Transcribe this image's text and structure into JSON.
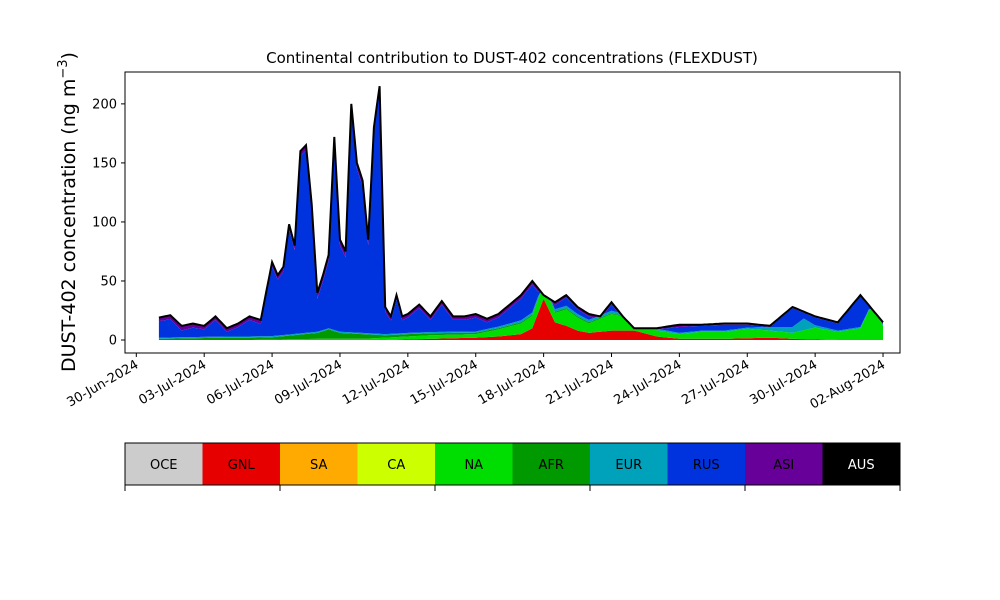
{
  "chart_data": {
    "type": "area",
    "title": "Continental contribution to DUST-402 concentrations (FLEXDUST)",
    "ylabel": "DUST-402 concentration (ng m⁻³)",
    "ylabel_main": "DUST-402 concentration (ng m",
    "ylabel_sup": "−3",
    "ylabel_close": ")",
    "xlabel": "",
    "ylim": [
      -11,
      227
    ],
    "xlim": [
      "2024-06-29T12:00",
      "2024-08-02T18:00"
    ],
    "yticks": [
      0,
      50,
      100,
      150,
      200
    ],
    "xticks": [
      "30-Jun-2024",
      "03-Jul-2024",
      "06-Jul-2024",
      "09-Jul-2024",
      "12-Jul-2024",
      "15-Jul-2024",
      "18-Jul-2024",
      "21-Jul-2024",
      "24-Jul-2024",
      "27-Jul-2024",
      "30-Jul-2024",
      "02-Aug-2024"
    ],
    "x_tick_dates": [
      "2024-06-30",
      "2024-07-03",
      "2024-07-06",
      "2024-07-09",
      "2024-07-12",
      "2024-07-15",
      "2024-07-18",
      "2024-07-21",
      "2024-07-24",
      "2024-07-27",
      "2024-07-30",
      "2024-08-02"
    ],
    "grid": false,
    "stack_order": [
      "GNL",
      "NA",
      "AFR",
      "EUR",
      "RUS",
      "ASI",
      "AUS"
    ],
    "legend": [
      {
        "name": "OCE",
        "color": "#cccccc",
        "text_color": "#000000"
      },
      {
        "name": "GNL",
        "color": "#e60000",
        "text_color": "#000000"
      },
      {
        "name": "SA",
        "color": "#ffaa00",
        "text_color": "#000000"
      },
      {
        "name": "CA",
        "color": "#ccff00",
        "text_color": "#000000"
      },
      {
        "name": "NA",
        "color": "#00dd00",
        "text_color": "#000000"
      },
      {
        "name": "AFR",
        "color": "#009900",
        "text_color": "#000000"
      },
      {
        "name": "EUR",
        "color": "#00a2bb",
        "text_color": "#000000"
      },
      {
        "name": "RUS",
        "color": "#0033dd",
        "text_color": "#000000"
      },
      {
        "name": "ASI",
        "color": "#660099",
        "text_color": "#000000"
      },
      {
        "name": "AUS",
        "color": "#000000",
        "text_color": "#ffffff"
      }
    ],
    "series": [
      {
        "name": "GNL",
        "x": [
          "2024-07-01",
          "2024-07-05",
          "2024-07-11",
          "2024-07-13",
          "2024-07-15",
          "2024-07-16",
          "2024-07-17",
          "2024-07-17T12:00",
          "2024-07-18",
          "2024-07-18T12:00",
          "2024-07-19",
          "2024-07-19T12:00",
          "2024-07-20",
          "2024-07-21",
          "2024-07-22",
          "2024-07-23",
          "2024-07-24",
          "2024-07-26",
          "2024-07-28",
          "2024-07-29",
          "2024-07-31",
          "2024-08-01",
          "2024-08-02"
        ],
        "values": [
          0,
          0,
          0,
          1,
          2,
          3,
          5,
          10,
          35,
          15,
          12,
          8,
          6,
          8,
          8,
          3,
          1,
          1,
          2,
          1,
          0,
          0,
          0
        ]
      },
      {
        "name": "NA",
        "x": [
          "2024-07-01",
          "2024-07-05",
          "2024-07-08",
          "2024-07-10",
          "2024-07-11",
          "2024-07-13",
          "2024-07-15",
          "2024-07-16",
          "2024-07-17",
          "2024-07-18",
          "2024-07-18T12:00",
          "2024-07-19",
          "2024-07-20",
          "2024-07-21",
          "2024-07-22",
          "2024-07-23",
          "2024-07-24",
          "2024-07-25",
          "2024-07-26",
          "2024-07-27",
          "2024-07-28",
          "2024-07-29",
          "2024-07-30",
          "2024-07-31",
          "2024-08-01",
          "2024-08-01T12:00",
          "2024-08-02"
        ],
        "values": [
          0,
          0,
          1,
          1,
          2,
          3,
          3,
          6,
          9,
          12,
          8,
          14,
          8,
          14,
          10,
          5,
          4,
          6,
          6,
          8,
          6,
          5,
          10,
          7,
          10,
          30,
          12
        ]
      },
      {
        "name": "AFR",
        "x": [
          "2024-07-01",
          "2024-07-04",
          "2024-07-06",
          "2024-07-08",
          "2024-07-08T12:00",
          "2024-07-09",
          "2024-07-10",
          "2024-07-11",
          "2024-07-12",
          "2024-07-16",
          "2024-07-20",
          "2024-07-24",
          "2024-07-28",
          "2024-08-02"
        ],
        "values": [
          1,
          2,
          2,
          5,
          8,
          5,
          4,
          2,
          2,
          1,
          1,
          0,
          0,
          0
        ]
      },
      {
        "name": "EUR",
        "x": [
          "2024-07-01",
          "2024-07-05",
          "2024-07-10",
          "2024-07-13",
          "2024-07-15",
          "2024-07-18",
          "2024-07-21",
          "2024-07-24",
          "2024-07-27",
          "2024-07-29",
          "2024-07-29T12:00",
          "2024-07-30",
          "2024-07-31",
          "2024-08-02"
        ],
        "values": [
          1,
          1,
          1,
          1,
          1,
          2,
          2,
          1,
          1,
          5,
          10,
          2,
          1,
          1
        ]
      },
      {
        "name": "RUS",
        "x": [
          "2024-07-01",
          "2024-07-01T12:00",
          "2024-07-02",
          "2024-07-02T12:00",
          "2024-07-03",
          "2024-07-03T12:00",
          "2024-07-04",
          "2024-07-04T12:00",
          "2024-07-05",
          "2024-07-05T12:00",
          "2024-07-06",
          "2024-07-06T06:00",
          "2024-07-06T12:00",
          "2024-07-06T18:00",
          "2024-07-07",
          "2024-07-07T06:00",
          "2024-07-07T12:00",
          "2024-07-07T18:00",
          "2024-07-08",
          "2024-07-08T06:00",
          "2024-07-08T12:00",
          "2024-07-08T18:00",
          "2024-07-09",
          "2024-07-09T06:00",
          "2024-07-09T12:00",
          "2024-07-09T18:00",
          "2024-07-10",
          "2024-07-10T06:00",
          "2024-07-10T12:00",
          "2024-07-10T18:00",
          "2024-07-11",
          "2024-07-11T06:00",
          "2024-07-11T12:00",
          "2024-07-11T18:00",
          "2024-07-12",
          "2024-07-12T12:00",
          "2024-07-13",
          "2024-07-13T12:00",
          "2024-07-14",
          "2024-07-14T12:00",
          "2024-07-15",
          "2024-07-15T12:00",
          "2024-07-16",
          "2024-07-16T12:00",
          "2024-07-17",
          "2024-07-17T12:00",
          "2024-07-18",
          "2024-07-18T12:00",
          "2024-07-19",
          "2024-07-19T12:00",
          "2024-07-20",
          "2024-07-20T12:00",
          "2024-07-21",
          "2024-07-21T12:00",
          "2024-07-22",
          "2024-07-23",
          "2024-07-24",
          "2024-07-25",
          "2024-07-26",
          "2024-07-27",
          "2024-07-28",
          "2024-07-29",
          "2024-07-30",
          "2024-07-31",
          "2024-08-01",
          "2024-08-02"
        ],
        "values": [
          14,
          16,
          8,
          10,
          8,
          12,
          6,
          8,
          14,
          11,
          60,
          48,
          55,
          90,
          72,
          150,
          158,
          108,
          32,
          42,
          60,
          165,
          75,
          65,
          190,
          140,
          125,
          75,
          170,
          205,
          20,
          12,
          30,
          12,
          14,
          18,
          10,
          15,
          13,
          10,
          15,
          8,
          10,
          10,
          12,
          10,
          8,
          8,
          12,
          6,
          8,
          6,
          12,
          6,
          6,
          5,
          7,
          5,
          6,
          5,
          4,
          6,
          6,
          5,
          5,
          3
        ]
      },
      {
        "name": "ASI",
        "x": [
          "2024-07-01",
          "2024-07-02",
          "2024-07-03",
          "2024-07-04",
          "2024-07-05",
          "2024-07-06",
          "2024-07-07",
          "2024-07-08",
          "2024-07-09",
          "2024-07-10",
          "2024-07-11",
          "2024-07-12",
          "2024-07-13",
          "2024-07-14",
          "2024-07-15",
          "2024-07-16",
          "2024-07-17",
          "2024-07-18",
          "2024-07-19",
          "2024-07-20",
          "2024-07-21",
          "2024-07-22",
          "2024-07-23",
          "2024-07-24",
          "2024-07-25",
          "2024-07-26",
          "2024-07-27",
          "2024-07-28",
          "2024-07-29",
          "2024-07-30",
          "2024-07-31",
          "2024-08-01",
          "2024-08-02"
        ],
        "values": [
          3,
          4,
          3,
          3,
          3,
          4,
          4,
          5,
          5,
          5,
          4,
          3,
          3,
          3,
          3,
          3,
          3,
          3,
          2,
          2,
          2,
          2,
          1,
          2,
          1,
          1,
          1,
          1,
          1,
          1,
          1,
          1,
          1
        ]
      },
      {
        "name": "AUS",
        "x": [
          "2024-07-01",
          "2024-08-02"
        ],
        "values": [
          0,
          0
        ]
      }
    ],
    "total": {
      "name": "total",
      "x": [
        "2024-07-01",
        "2024-07-01T12:00",
        "2024-07-02",
        "2024-07-02T12:00",
        "2024-07-03",
        "2024-07-03T12:00",
        "2024-07-04",
        "2024-07-04T12:00",
        "2024-07-05",
        "2024-07-05T12:00",
        "2024-07-06",
        "2024-07-06T06:00",
        "2024-07-06T12:00",
        "2024-07-06T18:00",
        "2024-07-07",
        "2024-07-07T06:00",
        "2024-07-07T12:00",
        "2024-07-07T18:00",
        "2024-07-08",
        "2024-07-08T06:00",
        "2024-07-08T12:00",
        "2024-07-08T18:00",
        "2024-07-09",
        "2024-07-09T06:00",
        "2024-07-09T12:00",
        "2024-07-09T18:00",
        "2024-07-10",
        "2024-07-10T06:00",
        "2024-07-10T12:00",
        "2024-07-10T18:00",
        "2024-07-11",
        "2024-07-11T06:00",
        "2024-07-11T12:00",
        "2024-07-11T18:00",
        "2024-07-12",
        "2024-07-12T12:00",
        "2024-07-13",
        "2024-07-13T12:00",
        "2024-07-14",
        "2024-07-14T12:00",
        "2024-07-15",
        "2024-07-15T12:00",
        "2024-07-16",
        "2024-07-16T12:00",
        "2024-07-17",
        "2024-07-17T12:00",
        "2024-07-18",
        "2024-07-18T12:00",
        "2024-07-19",
        "2024-07-19T12:00",
        "2024-07-20",
        "2024-07-20T12:00",
        "2024-07-21",
        "2024-07-21T12:00",
        "2024-07-22",
        "2024-07-23",
        "2024-07-24",
        "2024-07-25",
        "2024-07-26",
        "2024-07-27",
        "2024-07-28",
        "2024-07-29",
        "2024-07-30",
        "2024-07-31",
        "2024-08-01",
        "2024-08-02"
      ],
      "values": [
        19,
        21,
        12,
        14,
        12,
        20,
        10,
        14,
        20,
        17,
        66,
        55,
        62,
        98,
        80,
        160,
        165,
        115,
        40,
        55,
        72,
        172,
        85,
        75,
        200,
        150,
        135,
        85,
        180,
        215,
        28,
        20,
        38,
        20,
        22,
        30,
        20,
        33,
        20,
        20,
        22,
        18,
        22,
        30,
        38,
        50,
        38,
        32,
        38,
        28,
        22,
        20,
        32,
        20,
        10,
        10,
        13,
        13,
        14,
        14,
        12,
        28,
        20,
        15,
        38,
        15
      ]
    }
  }
}
